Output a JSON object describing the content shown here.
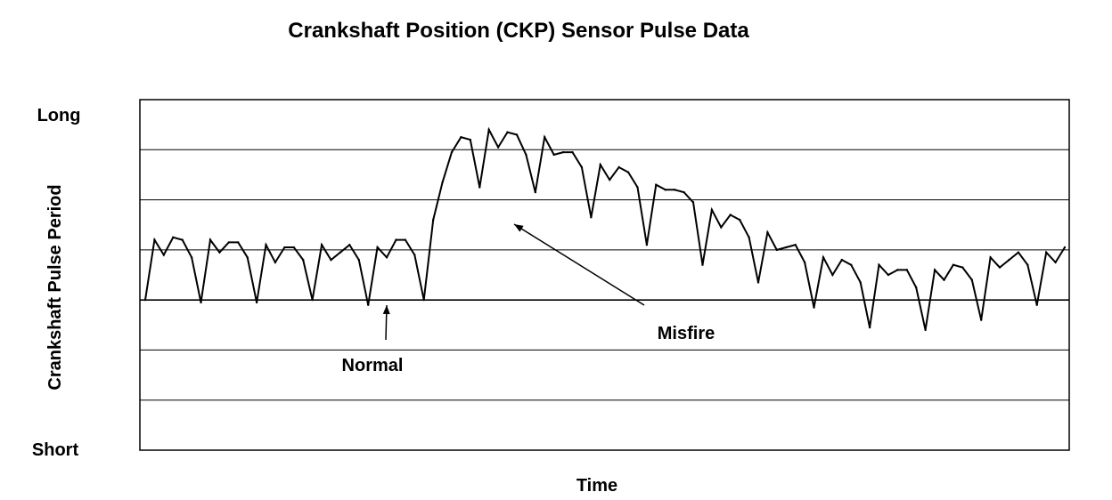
{
  "chart_data": {
    "type": "line",
    "title": "Crankshaft Position (CKP) Sensor Pulse Data",
    "xlabel": "Time",
    "ylabel": "Crankshaft Pulse Period",
    "y_top_label": "Long",
    "y_bottom_label": "Short",
    "ylim": [
      0,
      7
    ],
    "grid": true,
    "series": [
      {
        "values": [
          3.0,
          4.2,
          3.9,
          4.25,
          4.2,
          3.85,
          2.95,
          4.2,
          3.95,
          4.15,
          4.15,
          3.85,
          2.95,
          4.1,
          3.75,
          4.05,
          4.05,
          3.8,
          3.0,
          4.1,
          3.8,
          3.95,
          4.1,
          3.8,
          2.9,
          4.05,
          3.85,
          4.2,
          4.2,
          3.9,
          3.0,
          4.6,
          5.35,
          5.95,
          6.25,
          6.2,
          5.25,
          6.4,
          6.05,
          6.35,
          6.3,
          5.9,
          5.15,
          6.25,
          5.9,
          5.95,
          5.95,
          5.65,
          4.65,
          5.7,
          5.4,
          5.65,
          5.55,
          5.25,
          4.1,
          5.3,
          5.2,
          5.2,
          5.15,
          4.95,
          3.7,
          4.8,
          4.45,
          4.7,
          4.6,
          4.25,
          3.35,
          4.35,
          4.0,
          4.05,
          4.1,
          3.75,
          2.85,
          3.85,
          3.5,
          3.8,
          3.7,
          3.35,
          2.45,
          3.7,
          3.5,
          3.6,
          3.6,
          3.25,
          2.4,
          3.6,
          3.4,
          3.7,
          3.65,
          3.4,
          2.6,
          3.85,
          3.65,
          3.8,
          3.95,
          3.7,
          2.9,
          3.95,
          3.75,
          4.05
        ]
      }
    ],
    "annotations": [
      {
        "text": "Normal",
        "points_to_index": 26
      },
      {
        "text": "Misfire",
        "points_to_index": 40
      }
    ]
  }
}
